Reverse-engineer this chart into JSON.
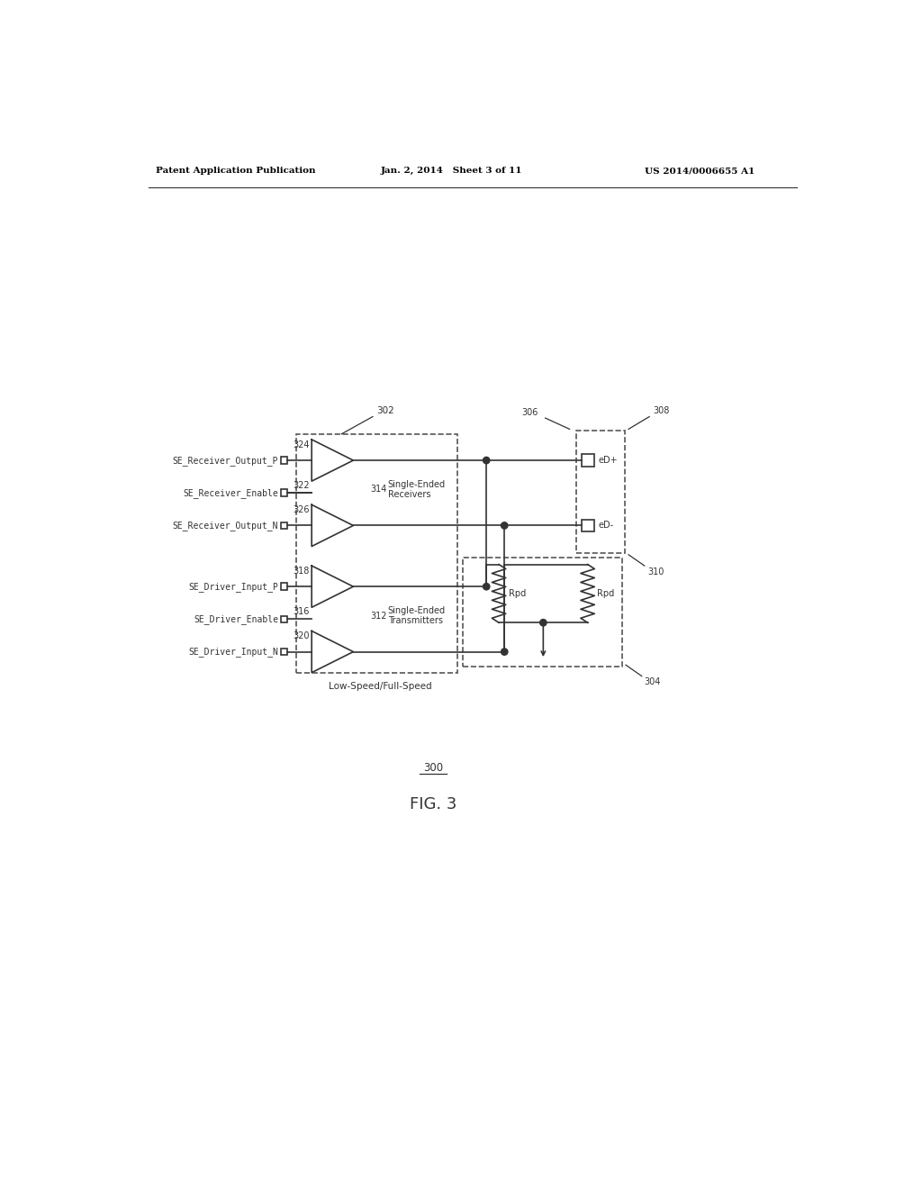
{
  "bg_color": "#ffffff",
  "line_color": "#333333",
  "dashed_color": "#555555",
  "header_left": "Patent Application Publication",
  "header_mid": "Jan. 2, 2014   Sheet 3 of 11",
  "header_right": "US 2014/0006655 A1",
  "fig_label": "300",
  "fig_name": "FIG. 3",
  "label_302": "302",
  "label_304": "304",
  "label_306": "306",
  "label_308": "308",
  "label_310": "310",
  "label_312": "312",
  "label_314": "314",
  "label_316": "316",
  "label_318": "318",
  "label_320": "320",
  "label_322": "322",
  "label_324": "324",
  "label_326": "326",
  "text_receivers": "Single-Ended\nReceivers",
  "text_transmitters": "Single-Ended\nTransmitters",
  "text_ls_fs": "Low-Speed/Full-Speed",
  "text_eD_plus": "eD+",
  "text_eD_minus": "eD-",
  "text_rpd1": "Rpd",
  "text_rpd2": "Rpd",
  "signal_SE_Rcv_Out_P": "SE_Receiver_Output_P",
  "signal_SE_Rcv_En": "SE_Receiver_Enable",
  "signal_SE_Rcv_Out_N": "SE_Receiver_Output_N",
  "signal_SE_Drv_In_P": "SE_Driver_Input_P",
  "signal_SE_Drv_En": "SE_Driver_Enable",
  "signal_SE_Drv_In_N": "SE_Driver_Input_N"
}
